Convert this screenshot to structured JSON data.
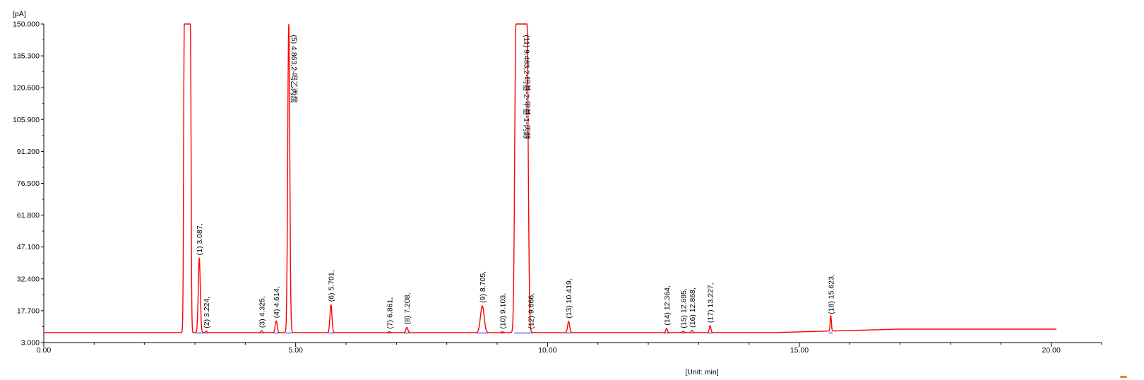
{
  "chart_data": {
    "type": "line",
    "title": "",
    "xlabel": "[Unit: min]",
    "ylabel": "[pA]",
    "xlim": [
      0,
      21
    ],
    "ylim": [
      3.0,
      150.0
    ],
    "xticks": [
      {
        "value": 0,
        "label": "0.00"
      },
      {
        "value": 5,
        "label": "5.00"
      },
      {
        "value": 10,
        "label": "10.00"
      },
      {
        "value": 15,
        "label": "15.00"
      },
      {
        "value": 20,
        "label": "20.00"
      }
    ],
    "yticks": [
      {
        "value": 3.0,
        "label": "3.000"
      },
      {
        "value": 17.7,
        "label": "17.700"
      },
      {
        "value": 32.4,
        "label": "32.400"
      },
      {
        "value": 47.1,
        "label": "47.100"
      },
      {
        "value": 61.8,
        "label": "61.800"
      },
      {
        "value": 76.5,
        "label": "76.500"
      },
      {
        "value": 91.2,
        "label": "91.200"
      },
      {
        "value": 105.9,
        "label": "105.900"
      },
      {
        "value": 120.6,
        "label": "120.600"
      },
      {
        "value": 135.3,
        "label": "135.300"
      },
      {
        "value": 150.0,
        "label": "150.000"
      }
    ],
    "series": [
      {
        "color": "#ff0000",
        "baseline": 7.6,
        "end_level": 9.2,
        "end_x": 20.1
      }
    ],
    "peaks": [
      {
        "rt": 2.85,
        "height": 150.0,
        "width": 0.11,
        "flat": true,
        "label": ""
      },
      {
        "rt": 3.087,
        "height": 42.0,
        "width": 0.05,
        "label": "(1) 3.087,"
      },
      {
        "rt": 3.224,
        "height": 8.3,
        "width": 0.04,
        "label": "(2) 3.224,"
      },
      {
        "rt": 4.325,
        "height": 8.5,
        "width": 0.04,
        "label": "(3) 4.325,"
      },
      {
        "rt": 4.614,
        "height": 13.0,
        "width": 0.05,
        "label": "(4) 4.614,"
      },
      {
        "rt": 4.863,
        "height": 150.0,
        "width": 0.05,
        "flat": false,
        "label": "(5) 4.863,2-吗乙丙烷"
      },
      {
        "rt": 5.701,
        "height": 20.5,
        "width": 0.05,
        "label": "(6) 5.701,"
      },
      {
        "rt": 6.861,
        "height": 8.0,
        "width": 0.04,
        "label": "(7) 6.861,"
      },
      {
        "rt": 7.208,
        "height": 10.0,
        "width": 0.05,
        "label": "(8) 7.208,"
      },
      {
        "rt": 8.705,
        "height": 20.0,
        "width": 0.09,
        "label": "(9) 8.705,"
      },
      {
        "rt": 9.103,
        "height": 8.0,
        "width": 0.04,
        "label": "(10) 9.103,"
      },
      {
        "rt": 9.483,
        "height": 150.0,
        "width": 0.2,
        "flat": true,
        "label": "(11) 9.483,2-吗基-2-甲基-1-丙醇"
      },
      {
        "rt": 9.666,
        "height": 8.0,
        "width": 0.04,
        "label": "(12) 9.666,"
      },
      {
        "rt": 10.419,
        "height": 12.8,
        "width": 0.05,
        "label": "(13) 10.419,"
      },
      {
        "rt": 12.364,
        "height": 9.6,
        "width": 0.04,
        "label": "(14) 12.364,"
      },
      {
        "rt": 12.695,
        "height": 8.3,
        "width": 0.04,
        "label": "(15) 12.695,"
      },
      {
        "rt": 12.868,
        "height": 8.6,
        "width": 0.04,
        "label": "(16) 12.868,"
      },
      {
        "rt": 13.227,
        "height": 10.8,
        "width": 0.04,
        "label": "(17) 13.227,"
      },
      {
        "rt": 15.623,
        "height": 14.8,
        "width": 0.03,
        "label": "(18) 15.623,"
      }
    ]
  }
}
